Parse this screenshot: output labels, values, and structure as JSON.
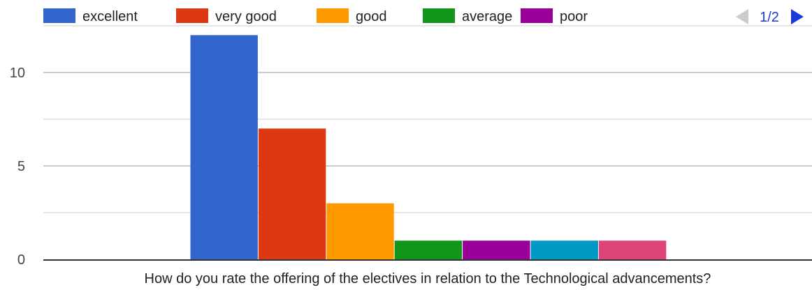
{
  "colors": {
    "series": [
      "#3366cc",
      "#dc3912",
      "#ff9900",
      "#109618",
      "#990099",
      "#0099c6",
      "#dd4477"
    ],
    "grid": "#cccccc",
    "axis": "#333333",
    "pager_active": "#1a3ad6",
    "pager_inactive": "#cccccc"
  },
  "legend": {
    "items": [
      "excellent",
      "very good",
      "good",
      "average",
      "poor"
    ],
    "pager": {
      "label": "1/2",
      "prev_icon": "triangle-left-icon",
      "next_icon": "triangle-right-icon"
    }
  },
  "chart_data": {
    "type": "bar",
    "categories": [
      "How do you rate the offering of the electives in relation to the Technological advancements?"
    ],
    "series": [
      {
        "name": "excellent",
        "values": [
          12
        ]
      },
      {
        "name": "very good",
        "values": [
          7
        ]
      },
      {
        "name": "good",
        "values": [
          3
        ]
      },
      {
        "name": "average",
        "values": [
          1
        ]
      },
      {
        "name": "poor",
        "values": [
          1
        ]
      },
      {
        "values": [
          1
        ]
      },
      {
        "values": [
          1
        ]
      }
    ],
    "yticks": [
      0,
      5,
      10
    ],
    "ylim": [
      0,
      12.5
    ],
    "grid": true,
    "legend_position": "top",
    "xlabel": "",
    "ylabel": ""
  }
}
